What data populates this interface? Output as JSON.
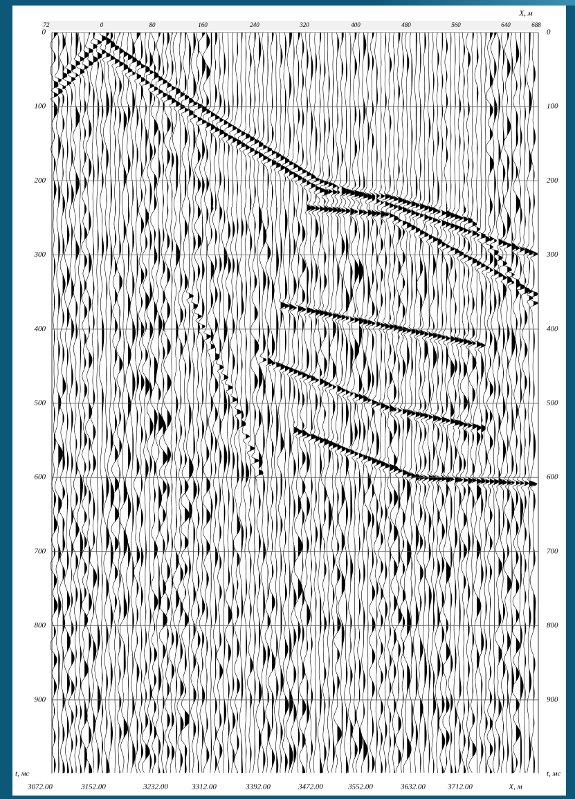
{
  "x_axis": {
    "title": "X, м",
    "labels": [
      "72",
      "0",
      "80",
      "160",
      "240",
      "320",
      "400",
      "480",
      "560",
      "640",
      "688"
    ]
  },
  "t_axis": {
    "title": "t, мс",
    "labels": [
      "0",
      "100",
      "200",
      "300",
      "400",
      "500",
      "600",
      "700",
      "800",
      "900"
    ]
  },
  "bottom_axis": {
    "title": "X, м",
    "labels": [
      "3072.00",
      "3152.00",
      "3232.00",
      "3312.00",
      "3392.00",
      "3472.00",
      "3552.00",
      "3632.00",
      "3712.00"
    ]
  }
}
